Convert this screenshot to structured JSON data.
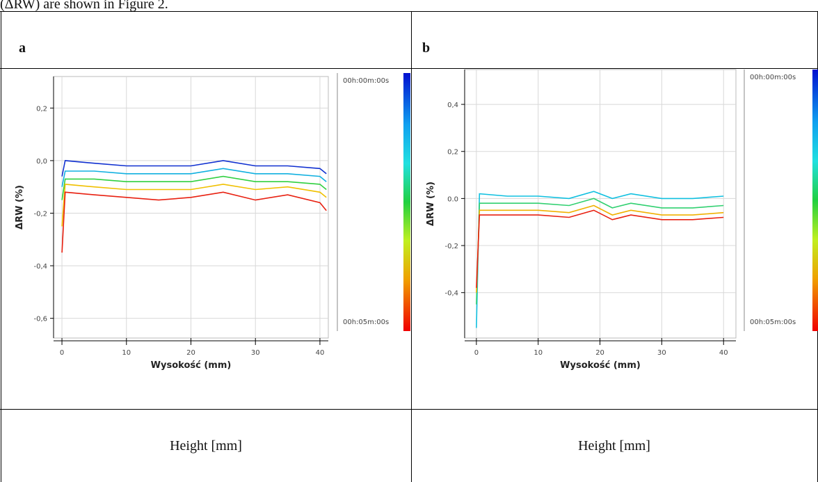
{
  "intro_text": "(ΔRW) are shown in Figure 2.",
  "table": {
    "panels": [
      {
        "label": "a",
        "caption": "Height [mm]",
        "chart": {
          "type": "line",
          "xlabel": "Wysokość (mm)",
          "ylabel": "ΔRW (%)",
          "xlim": [
            -1.3,
            41.3
          ],
          "xticks": [
            0,
            10,
            20,
            30,
            40
          ],
          "ylim": [
            -0.675,
            0.32
          ],
          "yticks": [
            {
              "value": 0.2,
              "label": "0,2"
            },
            {
              "value": 0,
              "label": "0,0"
            },
            {
              "value": -0.2,
              "label": "-0,2"
            },
            {
              "value": -0.4,
              "label": "-0,4"
            },
            {
              "value": -0.6,
              "label": "-0,6"
            }
          ],
          "grid": true,
          "colorbar_labels": [
            "00h:00m:00s",
            "00h:05m:00s"
          ],
          "x": [
            0,
            0.5,
            5,
            10,
            15,
            20,
            25,
            30,
            35,
            40,
            41
          ],
          "series": [
            {
              "color": "#1030d0",
              "values": [
                -0.06,
                0.0,
                -0.01,
                -0.02,
                -0.02,
                -0.02,
                0.0,
                -0.02,
                -0.02,
                -0.03,
                -0.05
              ]
            },
            {
              "color": "#10b0e0",
              "values": [
                -0.1,
                -0.04,
                -0.04,
                -0.05,
                -0.05,
                -0.05,
                -0.03,
                -0.05,
                -0.05,
                -0.06,
                -0.08
              ]
            },
            {
              "color": "#30d040",
              "values": [
                -0.15,
                -0.07,
                -0.07,
                -0.08,
                -0.08,
                -0.08,
                -0.06,
                -0.08,
                -0.08,
                -0.09,
                -0.11
              ]
            },
            {
              "color": "#f0c000",
              "values": [
                -0.25,
                -0.09,
                -0.1,
                -0.11,
                -0.11,
                -0.11,
                -0.09,
                -0.11,
                -0.1,
                -0.12,
                -0.14
              ]
            },
            {
              "color": "#e82010",
              "values": [
                -0.35,
                -0.12,
                -0.13,
                -0.14,
                -0.15,
                -0.14,
                -0.12,
                -0.15,
                -0.13,
                -0.16,
                -0.19
              ]
            }
          ]
        }
      },
      {
        "label": "b",
        "caption": "Height [mm]",
        "chart": {
          "type": "line",
          "xlabel": "Wysokość (mm)",
          "ylabel": "ΔRW (%)",
          "xlim": [
            -1.9,
            42.0
          ],
          "xticks": [
            0,
            10,
            20,
            30,
            40
          ],
          "ylim": [
            -0.593,
            0.548
          ],
          "yticks": [
            {
              "value": 0.4,
              "label": "0,4"
            },
            {
              "value": 0.2,
              "label": "0,2"
            },
            {
              "value": 0,
              "label": "0.0"
            },
            {
              "value": -0.2,
              "label": "-0,2"
            },
            {
              "value": -0.4,
              "label": "-0,4"
            }
          ],
          "grid": true,
          "colorbar_labels": [
            "00h:00m:00s",
            "00h:05m:00s"
          ],
          "x": [
            0,
            0.5,
            5,
            10,
            15,
            19,
            22,
            25,
            30,
            35,
            40
          ],
          "series": [
            {
              "color": "#10c0e0",
              "values": [
                -0.55,
                0.02,
                0.01,
                0.01,
                0.0,
                0.03,
                0.0,
                0.02,
                0.0,
                0.0,
                0.01
              ]
            },
            {
              "color": "#30d070",
              "values": [
                -0.45,
                -0.02,
                -0.02,
                -0.02,
                -0.03,
                0.0,
                -0.04,
                -0.02,
                -0.04,
                -0.04,
                -0.03
              ]
            },
            {
              "color": "#f0b000",
              "values": [
                -0.4,
                -0.05,
                -0.05,
                -0.05,
                -0.06,
                -0.03,
                -0.07,
                -0.05,
                -0.07,
                -0.07,
                -0.06
              ]
            },
            {
              "color": "#e82010",
              "values": [
                -0.38,
                -0.07,
                -0.07,
                -0.07,
                -0.08,
                -0.05,
                -0.09,
                -0.07,
                -0.09,
                -0.09,
                -0.08
              ]
            }
          ]
        }
      }
    ]
  }
}
